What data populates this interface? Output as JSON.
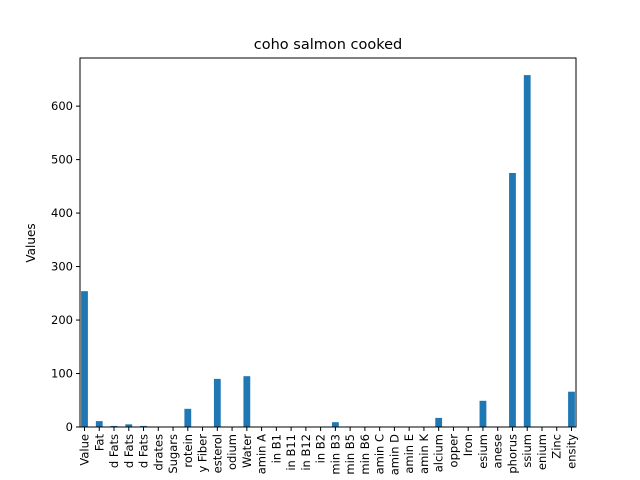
{
  "chart_data": {
    "type": "bar",
    "title": "coho salmon cooked",
    "xlabel": "",
    "ylabel": "Values",
    "ylim": [
      0,
      690
    ],
    "yticks": [
      0,
      100,
      200,
      300,
      400,
      500,
      600
    ],
    "grid": false,
    "legend": "none",
    "bar_color": "#1f77b4",
    "categories": [
      "Value",
      "Fat",
      "d Fats",
      "d Fats",
      "d Fats",
      "drates",
      "Sugars",
      "rotein",
      "y Fiber",
      "esterol",
      "odium",
      "Water",
      "amin A",
      "in B1",
      "in B11",
      "in B12",
      "in B2",
      "min B3",
      "min B5",
      "min B6",
      "amin C",
      "amin D",
      "amin E",
      "amin K",
      "alcium",
      "opper",
      "Iron",
      "esium",
      "anese",
      "phorus",
      "ssium",
      "enium",
      "Zinc",
      "ensity"
    ],
    "values": [
      254,
      11,
      2,
      5,
      2,
      0,
      0,
      34,
      0,
      90,
      0,
      95,
      0,
      0,
      0,
      0,
      0,
      9,
      1,
      0.5,
      1,
      0,
      0,
      0,
      17,
      0,
      0,
      49,
      0,
      475,
      658,
      0,
      0,
      66
    ]
  }
}
